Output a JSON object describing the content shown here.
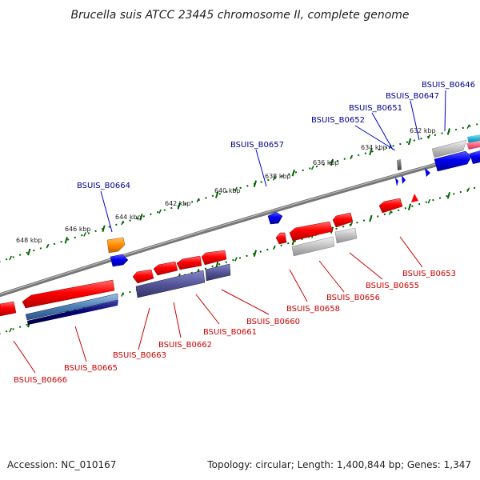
{
  "title": "Brucella suis ATCC 23445 chromosome II, complete genome",
  "accession_label": "Accession: NC_010167",
  "summary_label": "Topology: circular; Length: 1,400,844 bp; Genes: 1,347",
  "scale": {
    "tick_labels": [
      "648 kbp",
      "646 kbp",
      "644 kbp",
      "642 kbp",
      "640 kbp",
      "638 kbp",
      "636 kbp",
      "634 kbp",
      "632 kbp"
    ]
  },
  "genes": {
    "forward": [
      "BSUIS_B0664",
      "BSUIS_B0657",
      "BSUIS_B0652",
      "BSUIS_B0651",
      "BSUIS_B0647",
      "BSUIS_B0646"
    ],
    "reverse": [
      "BSUIS_B0666",
      "BSUIS_B0665",
      "BSUIS_B0663",
      "BSUIS_B0662",
      "BSUIS_B0661",
      "BSUIS_B0660",
      "BSUIS_B0658",
      "BSUIS_B0656",
      "BSUIS_B0655",
      "BSUIS_B0653"
    ]
  },
  "colors": {
    "forward_label": "#00008b",
    "reverse_label": "#cc0000",
    "backbone": "#808080",
    "tick": "#006400",
    "cds_red": "#ff0000",
    "cds_blue": "#0000ee",
    "cds_grey": "#c0c0c0",
    "cds_purple": "#555599",
    "cds_steel": "#4a7fb5",
    "cds_navy": "#00006e",
    "cds_orange": "#ff8c00",
    "cds_cyan": "#20b0d0",
    "cds_pink": "#ff6080"
  }
}
